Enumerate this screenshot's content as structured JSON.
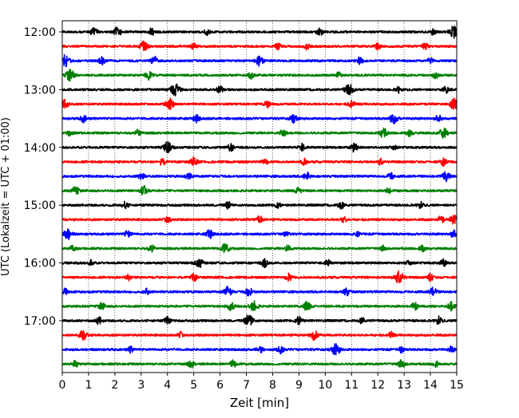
{
  "chart_data": {
    "type": "line",
    "title": "",
    "xlabel": "Zeit  [min]",
    "ylabel": "UTC (Lokalzeit = UTC + 01:00)",
    "xlim": [
      0,
      15
    ],
    "x_ticks": [
      0,
      1,
      2,
      3,
      4,
      5,
      6,
      7,
      8,
      9,
      10,
      11,
      12,
      13,
      14,
      15
    ],
    "x_tick_labels": [
      "0",
      "1",
      "2",
      "3",
      "4",
      "5",
      "6",
      "7",
      "8",
      "9",
      "10",
      "11",
      "12",
      "13",
      "14",
      "15"
    ],
    "y_tick_labels": [
      "12:00",
      "13:00",
      "14:00",
      "15:00",
      "16:00",
      "17:00"
    ],
    "y_tick_rows": [
      0,
      4,
      8,
      12,
      16,
      20
    ],
    "vertical_grid": "dotted at each minute",
    "row_colors": [
      "#000000",
      "#ff0000",
      "#0000ff",
      "#008000"
    ],
    "rows": [
      {
        "start": "12:00",
        "events": [
          [
            1.2,
            0.7
          ],
          [
            2.1,
            0.8
          ],
          [
            3.4,
            0.6
          ],
          [
            5.5,
            0.5
          ],
          [
            9.8,
            0.6
          ],
          [
            14.1,
            0.5
          ],
          [
            14.9,
            1.0
          ]
        ]
      },
      {
        "start": "12:15",
        "events": [
          [
            3.1,
            0.8
          ],
          [
            5.0,
            0.5
          ],
          [
            8.2,
            0.6
          ],
          [
            9.3,
            0.5
          ],
          [
            12.0,
            0.5
          ],
          [
            13.8,
            0.6
          ]
        ]
      },
      {
        "start": "12:30",
        "events": [
          [
            0.1,
            1.0
          ],
          [
            1.5,
            0.6
          ],
          [
            3.5,
            0.7
          ],
          [
            7.5,
            0.8
          ],
          [
            11.3,
            0.6
          ],
          [
            14.0,
            0.5
          ]
        ]
      },
      {
        "start": "12:45",
        "events": [
          [
            0.3,
            0.9
          ],
          [
            3.3,
            0.7
          ],
          [
            7.2,
            0.6
          ],
          [
            10.5,
            0.5
          ],
          [
            14.2,
            0.5
          ]
        ]
      },
      {
        "start": "13:00",
        "events": [
          [
            4.3,
            1.0
          ],
          [
            6.0,
            0.6
          ],
          [
            10.9,
            0.9
          ],
          [
            12.8,
            0.6
          ],
          [
            14.6,
            0.6
          ]
        ]
      },
      {
        "start": "13:15",
        "events": [
          [
            0.1,
            0.8
          ],
          [
            4.1,
            0.9
          ],
          [
            7.8,
            0.6
          ],
          [
            11.0,
            0.6
          ],
          [
            14.9,
            0.9
          ]
        ]
      },
      {
        "start": "13:30",
        "events": [
          [
            0.8,
            0.6
          ],
          [
            5.1,
            0.6
          ],
          [
            8.8,
            0.7
          ],
          [
            12.6,
            0.8
          ],
          [
            14.3,
            0.6
          ]
        ]
      },
      {
        "start": "13:45",
        "events": [
          [
            0.3,
            0.5
          ],
          [
            2.9,
            0.6
          ],
          [
            8.4,
            0.6
          ],
          [
            12.2,
            0.8
          ],
          [
            13.2,
            0.6
          ],
          [
            14.5,
            0.8
          ]
        ]
      },
      {
        "start": "14:00",
        "events": [
          [
            4.0,
            0.9
          ],
          [
            6.4,
            0.6
          ],
          [
            9.1,
            0.6
          ],
          [
            11.1,
            0.7
          ],
          [
            12.6,
            0.5
          ]
        ]
      },
      {
        "start": "14:15",
        "events": [
          [
            3.8,
            0.6
          ],
          [
            5.0,
            0.7
          ],
          [
            7.7,
            0.6
          ],
          [
            9.2,
            0.5
          ],
          [
            12.1,
            0.5
          ],
          [
            14.5,
            0.6
          ]
        ]
      },
      {
        "start": "14:30",
        "events": [
          [
            3.0,
            0.6
          ],
          [
            4.8,
            0.6
          ],
          [
            9.3,
            0.7
          ],
          [
            12.5,
            0.6
          ],
          [
            14.6,
            0.8
          ]
        ]
      },
      {
        "start": "14:45",
        "events": [
          [
            0.5,
            0.7
          ],
          [
            3.1,
            0.8
          ],
          [
            9.0,
            0.6
          ],
          [
            12.4,
            0.5
          ]
        ]
      },
      {
        "start": "15:00",
        "events": [
          [
            2.4,
            0.6
          ],
          [
            6.3,
            0.6
          ],
          [
            8.2,
            0.5
          ],
          [
            10.6,
            0.6
          ],
          [
            13.6,
            0.6
          ]
        ]
      },
      {
        "start": "15:15",
        "events": [
          [
            4.0,
            0.6
          ],
          [
            7.5,
            0.6
          ],
          [
            10.7,
            0.5
          ],
          [
            14.4,
            0.6
          ],
          [
            14.9,
            0.8
          ]
        ]
      },
      {
        "start": "15:30",
        "events": [
          [
            0.2,
            0.9
          ],
          [
            2.5,
            0.6
          ],
          [
            5.6,
            0.7
          ],
          [
            8.5,
            0.5
          ],
          [
            11.2,
            0.5
          ],
          [
            14.9,
            0.7
          ]
        ]
      },
      {
        "start": "15:45",
        "events": [
          [
            0.4,
            0.5
          ],
          [
            3.4,
            0.6
          ],
          [
            6.2,
            0.8
          ],
          [
            8.6,
            0.6
          ],
          [
            12.2,
            0.5
          ],
          [
            13.7,
            0.6
          ]
        ]
      },
      {
        "start": "16:00",
        "events": [
          [
            1.1,
            0.5
          ],
          [
            5.2,
            0.8
          ],
          [
            7.7,
            0.7
          ],
          [
            10.1,
            0.5
          ],
          [
            13.2,
            0.5
          ],
          [
            14.5,
            0.6
          ]
        ]
      },
      {
        "start": "16:15",
        "events": [
          [
            2.5,
            0.5
          ],
          [
            5.0,
            0.6
          ],
          [
            8.6,
            0.6
          ],
          [
            12.8,
            1.0
          ],
          [
            14.0,
            0.6
          ]
        ]
      },
      {
        "start": "16:30",
        "events": [
          [
            0.1,
            0.5
          ],
          [
            3.2,
            0.5
          ],
          [
            6.3,
            0.8
          ],
          [
            7.1,
            0.7
          ],
          [
            10.8,
            0.6
          ],
          [
            14.1,
            0.7
          ]
        ]
      },
      {
        "start": "16:45",
        "events": [
          [
            1.5,
            0.6
          ],
          [
            6.4,
            0.7
          ],
          [
            7.3,
            0.8
          ],
          [
            9.3,
            0.7
          ],
          [
            13.4,
            0.6
          ],
          [
            14.8,
            0.7
          ]
        ]
      },
      {
        "start": "17:00",
        "events": [
          [
            1.4,
            0.6
          ],
          [
            4.0,
            0.6
          ],
          [
            7.1,
            1.0
          ],
          [
            9.0,
            0.7
          ],
          [
            11.4,
            0.5
          ],
          [
            14.3,
            0.7
          ]
        ]
      },
      {
        "start": "17:15",
        "events": [
          [
            0.8,
            0.8
          ],
          [
            4.5,
            0.5
          ],
          [
            9.6,
            0.8
          ],
          [
            12.5,
            0.5
          ]
        ]
      },
      {
        "start": "17:30",
        "events": [
          [
            2.6,
            0.5
          ],
          [
            7.5,
            0.6
          ],
          [
            8.3,
            0.6
          ],
          [
            10.4,
            0.9
          ],
          [
            12.9,
            0.5
          ],
          [
            14.8,
            0.5
          ]
        ]
      },
      {
        "start": "17:45",
        "events": [
          [
            0.5,
            0.6
          ],
          [
            4.9,
            0.6
          ],
          [
            6.5,
            0.6
          ],
          [
            12.9,
            0.7
          ],
          [
            14.2,
            0.5
          ]
        ]
      }
    ]
  }
}
